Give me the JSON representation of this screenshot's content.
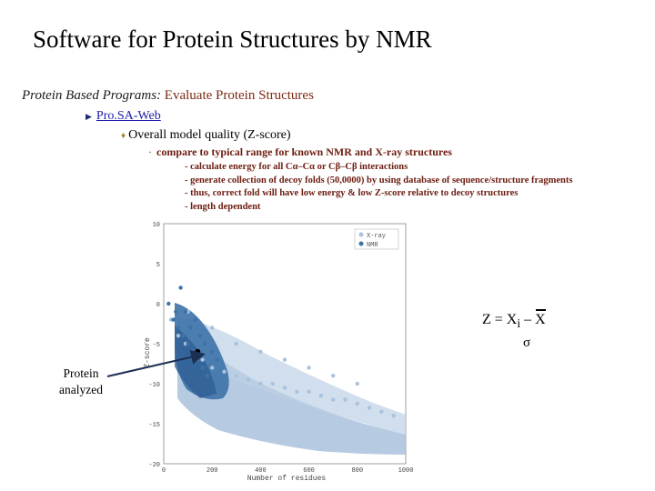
{
  "slide": {
    "title": "Software for Protein Structures by NMR",
    "line1_lead": "Protein Based Programs:",
    "line1_rest": " Evaluate Protein Structures",
    "tool_link": "Pro.SA-Web",
    "quality_item": "Overall model quality (Z-score)",
    "compare_item": "compare to typical range for known NMR and X-ray structures",
    "sub_items": [
      "- calculate energy for all Cα–Cα or Cβ–Cβ interactions",
      "- generate collection of decoy folds (50,0000) by using database of sequence/structure fragments",
      "- thus, correct fold will have low energy & low Z-score relative to decoy structures",
      "- length dependent"
    ],
    "formula_lhs": "Z = X",
    "formula_sub": "i",
    "formula_minus": " – ",
    "formula_xbar": "X",
    "formula_sigma": "σ",
    "protein_label_1": "Protein",
    "protein_label_2": "analyzed"
  },
  "colors": {
    "xray": "#a9c2dd",
    "nmr": "#3d72a8",
    "accent": "#7a2a14"
  },
  "chart_data": {
    "type": "scatter",
    "xlabel": "Number of residues",
    "ylabel": "Z-score",
    "xlim": [
      0,
      1000
    ],
    "ylim": [
      -20,
      10
    ],
    "xticks": [
      "0",
      "200",
      "400",
      "600",
      "800",
      "1000"
    ],
    "yticks": [
      "10",
      "5",
      "0",
      "-5",
      "-10",
      "-15",
      "-20"
    ],
    "legend": [
      "X-ray",
      "NMR"
    ],
    "legend_position": "top-right",
    "series": [
      {
        "name": "X-ray",
        "color": "#a9c2dd",
        "points": [
          [
            30,
            -2
          ],
          [
            60,
            -4
          ],
          [
            90,
            -5
          ],
          [
            120,
            -6
          ],
          [
            160,
            -7
          ],
          [
            200,
            -8
          ],
          [
            250,
            -8.5
          ],
          [
            300,
            -9
          ],
          [
            350,
            -9.5
          ],
          [
            400,
            -10
          ],
          [
            450,
            -10
          ],
          [
            500,
            -10.5
          ],
          [
            550,
            -11
          ],
          [
            600,
            -11
          ],
          [
            650,
            -11.5
          ],
          [
            700,
            -12
          ],
          [
            750,
            -12
          ],
          [
            800,
            -12.5
          ],
          [
            850,
            -13
          ],
          [
            900,
            -13.5
          ],
          [
            950,
            -14
          ],
          [
            100,
            -1
          ],
          [
            200,
            -3
          ],
          [
            300,
            -5
          ],
          [
            400,
            -6
          ],
          [
            500,
            -7
          ],
          [
            600,
            -8
          ],
          [
            700,
            -9
          ],
          [
            800,
            -10
          ]
        ]
      },
      {
        "name": "NMR",
        "color": "#3d72a8",
        "points": [
          [
            20,
            0
          ],
          [
            40,
            -2
          ],
          [
            60,
            -3
          ],
          [
            80,
            -4
          ],
          [
            100,
            -5
          ],
          [
            120,
            -6
          ],
          [
            140,
            -7
          ],
          [
            160,
            -8
          ],
          [
            180,
            -9
          ],
          [
            50,
            -1
          ],
          [
            70,
            2
          ],
          [
            90,
            -1
          ],
          [
            110,
            -3
          ],
          [
            130,
            -2
          ],
          [
            150,
            -4
          ],
          [
            170,
            -5
          ],
          [
            200,
            -6
          ],
          [
            220,
            -7
          ]
        ]
      }
    ],
    "highlight_point": [
      140,
      -6
    ]
  }
}
